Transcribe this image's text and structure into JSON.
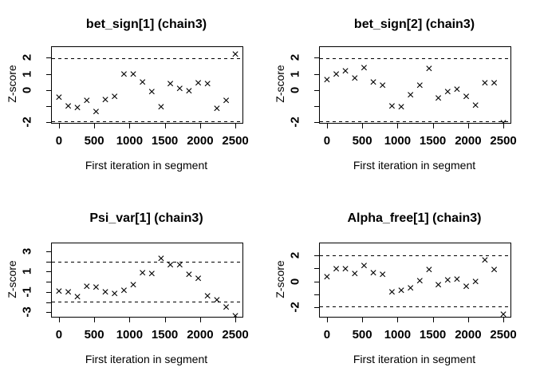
{
  "figure": {
    "background_color": "#ffffff",
    "foreground_color": "#000000",
    "description": "Geweke convergence diagnostic plots, 2x2 grid"
  },
  "chart_data": [
    {
      "type": "scatter",
      "title": "bet_sign[1] (chain3)",
      "xlabel": "First iteration in segment",
      "ylabel": "Z-score",
      "marker": "x",
      "x": [
        0,
        132,
        263,
        395,
        526,
        658,
        789,
        921,
        1053,
        1184,
        1316,
        1447,
        1579,
        1711,
        1842,
        1974,
        2105,
        2237,
        2368,
        2500
      ],
      "y": [
        -0.48,
        -1.04,
        -1.14,
        -0.71,
        -1.37,
        -0.67,
        -0.43,
        0.91,
        0.94,
        0.42,
        -0.18,
        -1.12,
        0.32,
        0.05,
        -0.13,
        0.38,
        0.33,
        -1.2,
        -0.72,
        2.15
      ],
      "xlim": [
        -100,
        2600
      ],
      "ylim": [
        -2.04,
        2.66
      ],
      "xticks": [
        0,
        500,
        1000,
        1500,
        2000,
        2500
      ],
      "yticks": [
        {
          "v": 2,
          "label": "2"
        },
        {
          "v": 1,
          "label": "1"
        },
        {
          "v": 0,
          "label": "0"
        },
        {
          "v": -1,
          "label": ""
        },
        {
          "v": -2,
          "label": "-2"
        }
      ],
      "hlines": {
        "values": [
          1.96,
          -1.96
        ],
        "style": "dashed"
      },
      "grid": false,
      "legend": "none"
    },
    {
      "type": "scatter",
      "title": "bet_sign[2] (chain3)",
      "xlabel": "First iteration in segment",
      "ylabel": "Z-score",
      "marker": "x",
      "x": [
        0,
        132,
        263,
        395,
        526,
        658,
        789,
        921,
        1053,
        1184,
        1316,
        1447,
        1579,
        1711,
        1842,
        1974,
        2105,
        2237,
        2368,
        2500
      ],
      "y": [
        0.58,
        0.94,
        1.12,
        0.66,
        1.34,
        0.42,
        0.22,
        -1.04,
        -1.12,
        -0.36,
        0.23,
        1.3,
        -0.56,
        -0.16,
        0.0,
        -0.46,
        -1.02,
        0.37,
        0.4,
        -2.11
      ],
      "xlim": [
        -100,
        2600
      ],
      "ylim": [
        -2.04,
        2.66
      ],
      "xticks": [
        0,
        500,
        1000,
        1500,
        2000,
        2500
      ],
      "yticks": [
        {
          "v": 2,
          "label": "2"
        },
        {
          "v": 1,
          "label": "1"
        },
        {
          "v": 0,
          "label": "0"
        },
        {
          "v": -1,
          "label": ""
        },
        {
          "v": -2,
          "label": "-2"
        }
      ],
      "hlines": {
        "values": [
          1.96,
          -1.96
        ],
        "style": "dashed"
      },
      "grid": false,
      "legend": "none"
    },
    {
      "type": "scatter",
      "title": "Psi_var[1] (chain3)",
      "xlabel": "First iteration in segment",
      "ylabel": "Z-score",
      "marker": "x",
      "x": [
        0,
        132,
        263,
        395,
        526,
        658,
        789,
        921,
        1053,
        1184,
        1316,
        1447,
        1579,
        1711,
        1842,
        1974,
        2105,
        2237,
        2368,
        2500
      ],
      "y": [
        -1.01,
        -1.08,
        -1.56,
        -0.56,
        -0.61,
        -1.06,
        -1.24,
        -0.93,
        -0.4,
        0.82,
        0.69,
        2.22,
        1.56,
        1.61,
        0.61,
        0.24,
        -1.51,
        -1.88,
        -2.54,
        -3.41
      ],
      "xlim": [
        -100,
        2600
      ],
      "ylim": [
        -3.44,
        3.76
      ],
      "xticks": [
        0,
        500,
        1000,
        1500,
        2000,
        2500
      ],
      "yticks": [
        {
          "v": 3,
          "label": "3"
        },
        {
          "v": 2,
          "label": ""
        },
        {
          "v": 1,
          "label": "1"
        },
        {
          "v": 0,
          "label": ""
        },
        {
          "v": -1,
          "label": "-1"
        },
        {
          "v": -2,
          "label": ""
        },
        {
          "v": -3,
          "label": "-3"
        }
      ],
      "hlines": {
        "values": [
          1.96,
          -1.96
        ],
        "style": "dashed"
      },
      "grid": false,
      "legend": "none"
    },
    {
      "type": "scatter",
      "title": "Alpha_free[1] (chain3)",
      "xlabel": "First iteration in segment",
      "ylabel": "Z-score",
      "marker": "x",
      "x": [
        0,
        132,
        263,
        395,
        526,
        658,
        789,
        921,
        1053,
        1184,
        1316,
        1447,
        1579,
        1711,
        1842,
        1974,
        2105,
        2237,
        2368,
        2500
      ],
      "y": [
        0.27,
        0.9,
        0.92,
        0.55,
        1.18,
        0.57,
        0.49,
        -0.86,
        -0.78,
        -0.55,
        0.0,
        0.86,
        -0.31,
        0.02,
        0.1,
        -0.43,
        -0.08,
        1.59,
        0.82,
        -2.59
      ],
      "xlim": [
        -100,
        2600
      ],
      "ylim": [
        -2.72,
        2.93
      ],
      "xticks": [
        0,
        500,
        1000,
        1500,
        2000,
        2500
      ],
      "yticks": [
        {
          "v": 2,
          "label": "2"
        },
        {
          "v": 1,
          "label": ""
        },
        {
          "v": 0,
          "label": "0"
        },
        {
          "v": -1,
          "label": ""
        },
        {
          "v": -2,
          "label": "-2"
        }
      ],
      "hlines": {
        "values": [
          1.96,
          -1.96
        ],
        "style": "dashed"
      },
      "grid": false,
      "legend": "none"
    }
  ]
}
